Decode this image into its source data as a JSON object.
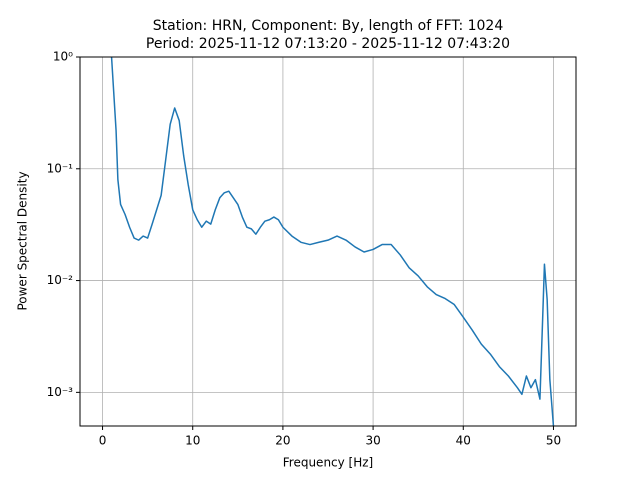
{
  "chart_data": {
    "type": "line",
    "title": "Station: HRN, Component: By, length of FFT: 1024",
    "subtitle": "Period: 2025-11-12 07:13:20 - 2025-11-12 07:43:20",
    "x_label": "Frequency [Hz]",
    "y_label": "Power Spectral Density",
    "color": "#1f77b4",
    "x": [
      1,
      1.5,
      1.7,
      2,
      2.5,
      3,
      3.5,
      4,
      4.5,
      5,
      5.5,
      6,
      6.5,
      7,
      7.5,
      8,
      8.5,
      9,
      9.5,
      10,
      10.5,
      11,
      11.5,
      12,
      12.5,
      13,
      13.5,
      14,
      14.5,
      15,
      15.5,
      16,
      16.5,
      17,
      17.5,
      18,
      18.5,
      19,
      19.5,
      20,
      21,
      22,
      23,
      24,
      25,
      26,
      27,
      28,
      29,
      30,
      31,
      32,
      33,
      34,
      35,
      36,
      37,
      38,
      39,
      40,
      41,
      42,
      43,
      44,
      45,
      46,
      46.5,
      47,
      47.5,
      48,
      48.5,
      48.8,
      49,
      49.3,
      49.6,
      50
    ],
    "values": [
      1.0,
      0.22,
      0.08,
      0.048,
      0.039,
      0.03,
      0.024,
      0.023,
      0.025,
      0.024,
      0.032,
      0.043,
      0.058,
      0.12,
      0.25,
      0.35,
      0.27,
      0.13,
      0.072,
      0.043,
      0.035,
      0.03,
      0.034,
      0.032,
      0.043,
      0.055,
      0.061,
      0.063,
      0.055,
      0.048,
      0.037,
      0.03,
      0.029,
      0.026,
      0.03,
      0.034,
      0.035,
      0.037,
      0.035,
      0.03,
      0.025,
      0.022,
      0.021,
      0.022,
      0.023,
      0.025,
      0.023,
      0.02,
      0.018,
      0.019,
      0.021,
      0.021,
      0.017,
      0.013,
      0.011,
      0.0088,
      0.0075,
      0.0069,
      0.0061,
      0.0047,
      0.0036,
      0.0027,
      0.0022,
      0.0017,
      0.0014,
      0.0011,
      0.00096,
      0.0014,
      0.0011,
      0.0013,
      0.00087,
      0.0045,
      0.014,
      0.0068,
      0.0013,
      0.0005
    ],
    "xlim": [
      -2.5,
      52.5
    ],
    "xticks": [
      0,
      10,
      20,
      30,
      40,
      50
    ],
    "ylim": [
      0.0005,
      1
    ],
    "yticks": [
      {
        "value": 1,
        "label": "10⁰"
      },
      {
        "value": 0.1,
        "label": "10⁻¹"
      },
      {
        "value": 0.01,
        "label": "10⁻²"
      },
      {
        "value": 0.001,
        "label": "10⁻³"
      }
    ],
    "y_scale": "log",
    "grid": true
  }
}
